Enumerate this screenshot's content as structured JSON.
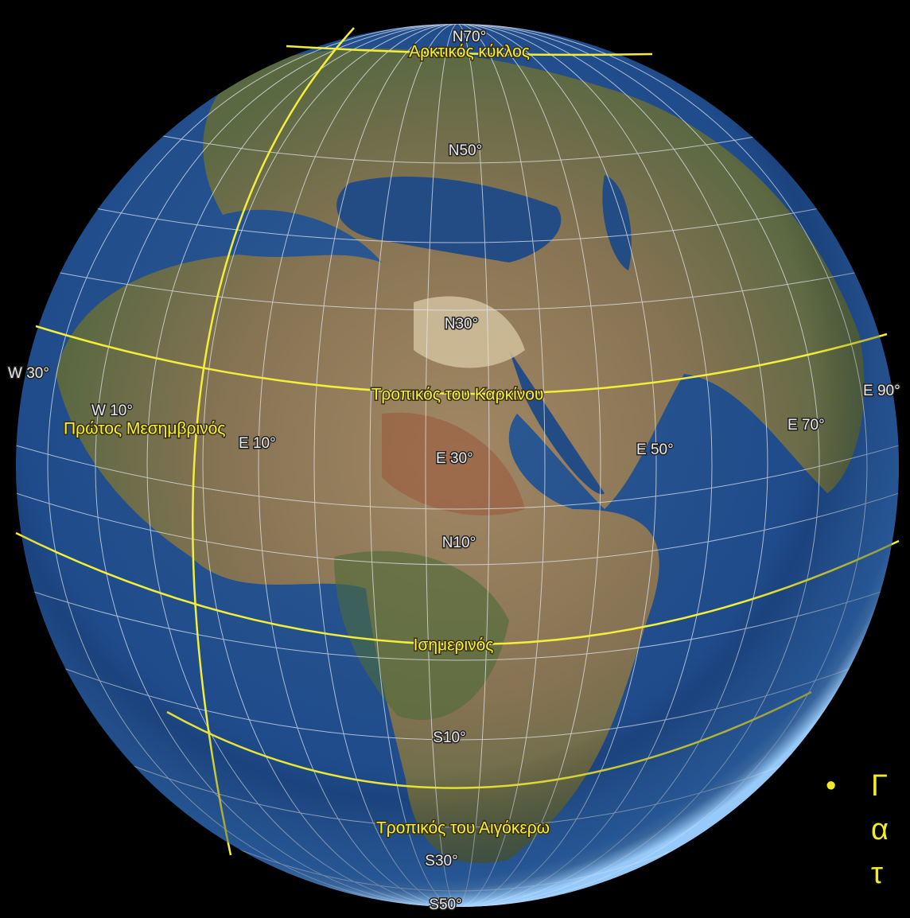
{
  "globe": {
    "lines": {
      "arctic_circle": "Αρκτικός κύκλος",
      "tropic_of_cancer": "Τροπικός του Καρκίνου",
      "prime_meridian": "Πρώτος Μεσημβρινός",
      "equator": "Ισημερινός",
      "tropic_of_capricorn": "Τροπικός του Αιγόκερω"
    },
    "latitudes": [
      "N70°",
      "N50°",
      "N30°",
      "N10°",
      "S10°",
      "S30°",
      "S50°"
    ],
    "longitudes": [
      "W 30°",
      "W 10°",
      "E 10°",
      "E 30°",
      "E 50°",
      "E 70°",
      "E 90°"
    ]
  },
  "side_text": {
    "bullet": "•",
    "lines": [
      "Γ",
      "α",
      "τ"
    ]
  }
}
